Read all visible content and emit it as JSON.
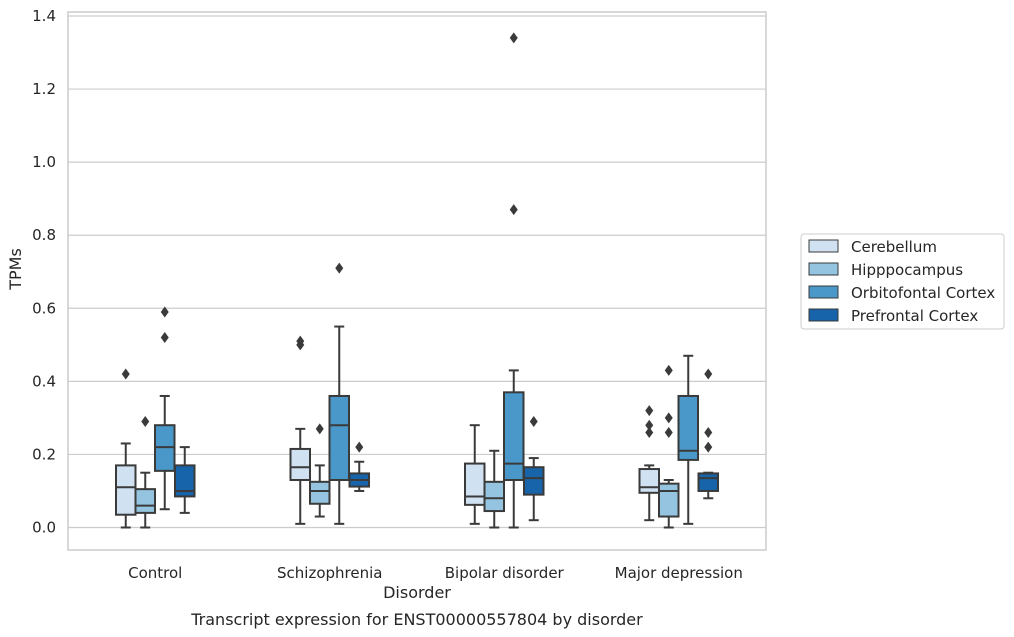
{
  "chart_data": {
    "type": "box",
    "caption": "Transcript expression for ENST00000557804 by disorder",
    "xlabel": "Disorder",
    "ylabel": "TPMs",
    "ylim": [
      -0.063,
      1.41
    ],
    "yticks": [
      "0.0",
      "0.2",
      "0.4",
      "0.6",
      "0.8",
      "1.0",
      "1.2",
      "1.4"
    ],
    "grid": "horizontal",
    "legend_position": "right",
    "categories": [
      "Control",
      "Schizophrenia",
      "Bipolar disorder",
      "Major depression"
    ],
    "series": [
      {
        "name": "Cerebellum",
        "color": "#d0e1f2",
        "boxes": [
          {
            "whislo": 0.0,
            "q1": 0.035,
            "median": 0.11,
            "q3": 0.17,
            "whishi": 0.23,
            "fliers": [
              0.42
            ]
          },
          {
            "whislo": 0.01,
            "q1": 0.13,
            "median": 0.165,
            "q3": 0.215,
            "whishi": 0.27,
            "fliers": [
              0.5,
              0.51
            ]
          },
          {
            "whislo": 0.01,
            "q1": 0.062,
            "median": 0.085,
            "q3": 0.175,
            "whishi": 0.28,
            "fliers": []
          },
          {
            "whislo": 0.02,
            "q1": 0.095,
            "median": 0.11,
            "q3": 0.16,
            "whishi": 0.17,
            "fliers": [
              0.26,
              0.28,
              0.32
            ]
          }
        ]
      },
      {
        "name": "Hipppocampus",
        "color": "#94c4df",
        "boxes": [
          {
            "whislo": 0.0,
            "q1": 0.04,
            "median": 0.06,
            "q3": 0.105,
            "whishi": 0.15,
            "fliers": [
              0.29
            ]
          },
          {
            "whislo": 0.03,
            "q1": 0.065,
            "median": 0.1,
            "q3": 0.125,
            "whishi": 0.17,
            "fliers": [
              0.27
            ]
          },
          {
            "whislo": 0.0,
            "q1": 0.045,
            "median": 0.08,
            "q3": 0.125,
            "whishi": 0.21,
            "fliers": []
          },
          {
            "whislo": 0.0,
            "q1": 0.03,
            "median": 0.1,
            "q3": 0.12,
            "whishi": 0.13,
            "fliers": [
              0.26,
              0.3,
              0.43
            ]
          }
        ]
      },
      {
        "name": "Orbitofontal Cortex",
        "color": "#4a98c9",
        "boxes": [
          {
            "whislo": 0.05,
            "q1": 0.155,
            "median": 0.22,
            "q3": 0.28,
            "whishi": 0.36,
            "fliers": [
              0.52,
              0.59
            ]
          },
          {
            "whislo": 0.01,
            "q1": 0.13,
            "median": 0.28,
            "q3": 0.36,
            "whishi": 0.55,
            "fliers": [
              0.71
            ]
          },
          {
            "whislo": 0.0,
            "q1": 0.13,
            "median": 0.175,
            "q3": 0.37,
            "whishi": 0.43,
            "fliers": [
              0.87,
              1.34
            ]
          },
          {
            "whislo": 0.01,
            "q1": 0.185,
            "median": 0.21,
            "q3": 0.36,
            "whishi": 0.47,
            "fliers": []
          }
        ]
      },
      {
        "name": "Prefrontal Cortex",
        "color": "#1764ab",
        "boxes": [
          {
            "whislo": 0.04,
            "q1": 0.085,
            "median": 0.1,
            "q3": 0.17,
            "whishi": 0.22,
            "fliers": []
          },
          {
            "whislo": 0.1,
            "q1": 0.112,
            "median": 0.13,
            "q3": 0.148,
            "whishi": 0.18,
            "fliers": [
              0.22
            ]
          },
          {
            "whislo": 0.02,
            "q1": 0.09,
            "median": 0.135,
            "q3": 0.165,
            "whishi": 0.19,
            "fliers": [
              0.29
            ]
          },
          {
            "whislo": 0.08,
            "q1": 0.1,
            "median": 0.135,
            "q3": 0.148,
            "whishi": 0.15,
            "fliers": [
              0.22,
              0.26,
              0.42
            ]
          }
        ]
      }
    ]
  }
}
